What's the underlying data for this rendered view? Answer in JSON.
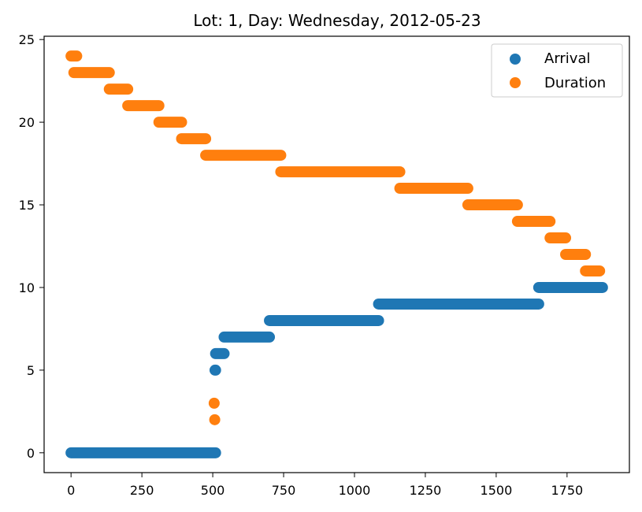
{
  "chart_data": {
    "type": "scatter",
    "title": "Lot: 1, Day: Wednesday, 2012-05-23",
    "xlabel": "",
    "ylabel": "",
    "xlim": [
      -95,
      1970
    ],
    "ylim": [
      -1.2,
      25.2
    ],
    "x_ticks": [
      0,
      250,
      500,
      750,
      1000,
      1250,
      1500,
      1750
    ],
    "y_ticks": [
      0,
      5,
      10,
      15,
      20,
      25
    ],
    "grid": false,
    "legend_position": "top-right",
    "colors": {
      "arrival": "#1f77b4",
      "duration": "#ff7f0e"
    },
    "series": [
      {
        "name": "Arrival",
        "color": "#1f77b4",
        "segments": [
          {
            "y": 0,
            "x_start": 0,
            "x_end": 510
          },
          {
            "y": 5,
            "x_start": 508,
            "x_end": 510
          },
          {
            "y": 6,
            "x_start": 510,
            "x_end": 540
          },
          {
            "y": 7,
            "x_start": 540,
            "x_end": 700
          },
          {
            "y": 8,
            "x_start": 700,
            "x_end": 1085
          },
          {
            "y": 9,
            "x_start": 1085,
            "x_end": 1650
          },
          {
            "y": 10,
            "x_start": 1650,
            "x_end": 1875
          }
        ]
      },
      {
        "name": "Duration",
        "color": "#ff7f0e",
        "segments": [
          {
            "y": 24,
            "x_start": 0,
            "x_end": 20
          },
          {
            "y": 23,
            "x_start": 10,
            "x_end": 135
          },
          {
            "y": 22,
            "x_start": 135,
            "x_end": 200
          },
          {
            "y": 21,
            "x_start": 200,
            "x_end": 310
          },
          {
            "y": 20,
            "x_start": 310,
            "x_end": 390
          },
          {
            "y": 19,
            "x_start": 390,
            "x_end": 475
          },
          {
            "y": 18,
            "x_start": 475,
            "x_end": 740
          },
          {
            "y": 17,
            "x_start": 740,
            "x_end": 1160
          },
          {
            "y": 16,
            "x_start": 1160,
            "x_end": 1400
          },
          {
            "y": 15,
            "x_start": 1400,
            "x_end": 1575
          },
          {
            "y": 14,
            "x_start": 1575,
            "x_end": 1690
          },
          {
            "y": 13,
            "x_start": 1690,
            "x_end": 1745
          },
          {
            "y": 12,
            "x_start": 1745,
            "x_end": 1815
          },
          {
            "y": 11,
            "x_start": 1815,
            "x_end": 1865
          },
          {
            "y": 3,
            "x_start": 505,
            "x_end": 505
          },
          {
            "y": 2,
            "x_start": 507,
            "x_end": 507
          }
        ]
      }
    ]
  }
}
